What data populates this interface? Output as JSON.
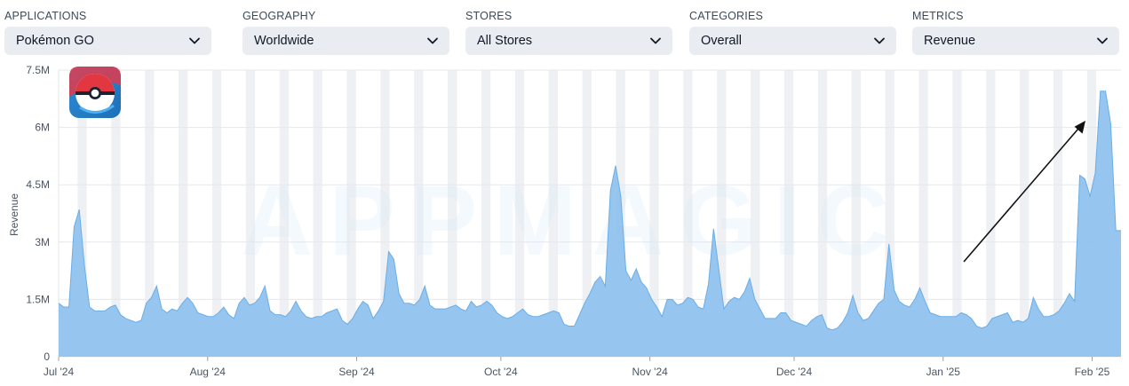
{
  "filters": [
    {
      "label": "APPLICATIONS",
      "value": "Pokémon GO"
    },
    {
      "label": "GEOGRAPHY",
      "value": "Worldwide"
    },
    {
      "label": "STORES",
      "value": "All Stores"
    },
    {
      "label": "CATEGORIES",
      "value": "Overall"
    },
    {
      "label": "METRICS",
      "value": "Revenue"
    }
  ],
  "watermark": "APPMAGIC",
  "colors": {
    "area_fill": "#90c2ee",
    "area_stroke": "#6aaee6",
    "weekend_band": "#eef0f3",
    "grid": "#e5e7eb",
    "dropdown_bg": "#e9ecf0",
    "arrow": "#111111"
  },
  "chart_data": {
    "type": "area",
    "ylabel": "Revenue",
    "ylim": [
      0,
      7500000
    ],
    "yticks": [
      {
        "value": 0,
        "label": "0"
      },
      {
        "value": 1500000,
        "label": "1.5M"
      },
      {
        "value": 3000000,
        "label": "3M"
      },
      {
        "value": 4500000,
        "label": "4.5M"
      },
      {
        "value": 6000000,
        "label": "6M"
      },
      {
        "value": 7500000,
        "label": "7.5M"
      }
    ],
    "xticks": [
      {
        "label": "Jul '24",
        "day": 0
      },
      {
        "label": "Aug '24",
        "day": 31
      },
      {
        "label": "Sep '24",
        "day": 62
      },
      {
        "label": "Oct '24",
        "day": 92
      },
      {
        "label": "Nov '24",
        "day": 123
      },
      {
        "label": "Dec '24",
        "day": 153
      },
      {
        "label": "Jan '25",
        "day": 184
      },
      {
        "label": "Feb '25",
        "day": 215
      }
    ],
    "xmax_day": 221,
    "weekend_band_offset_days": 4,
    "values": [
      1400000,
      1300000,
      1300000,
      3400000,
      3850000,
      2400000,
      1300000,
      1200000,
      1200000,
      1200000,
      1300000,
      1350000,
      1100000,
      1000000,
      950000,
      900000,
      950000,
      1400000,
      1550000,
      1850000,
      1250000,
      1150000,
      1250000,
      1200000,
      1400000,
      1550000,
      1400000,
      1150000,
      1100000,
      1050000,
      1050000,
      1150000,
      1300000,
      1100000,
      1000000,
      1400000,
      1550000,
      1350000,
      1400000,
      1550000,
      1850000,
      1200000,
      1100000,
      1100000,
      1050000,
      1200000,
      1450000,
      1200000,
      1050000,
      1000000,
      1050000,
      1050000,
      1150000,
      1200000,
      1250000,
      950000,
      850000,
      1000000,
      1250000,
      1450000,
      1350000,
      1000000,
      1200000,
      1450000,
      2750000,
      2550000,
      1650000,
      1400000,
      1400000,
      1350000,
      1500000,
      1850000,
      1350000,
      1250000,
      1250000,
      1250000,
      1300000,
      1350000,
      1250000,
      1200000,
      1450000,
      1300000,
      1350000,
      1450000,
      1350000,
      1150000,
      1050000,
      1000000,
      1050000,
      1150000,
      1250000,
      1100000,
      1050000,
      1050000,
      1100000,
      1150000,
      1200000,
      1150000,
      850000,
      800000,
      800000,
      1100000,
      1400000,
      1650000,
      1950000,
      2100000,
      1850000,
      4350000,
      5000000,
      4200000,
      2250000,
      2000000,
      2300000,
      1950000,
      1800000,
      1500000,
      1300000,
      1050000,
      1500000,
      1500000,
      1350000,
      1400000,
      1550000,
      1500000,
      1300000,
      1250000,
      1900000,
      3350000,
      2300000,
      1250000,
      1450000,
      1550000,
      1500000,
      1700000,
      2050000,
      1500000,
      1250000,
      1000000,
      1000000,
      1000000,
      1150000,
      1150000,
      950000,
      900000,
      850000,
      800000,
      950000,
      1050000,
      1100000,
      750000,
      700000,
      750000,
      900000,
      1150000,
      1600000,
      1150000,
      950000,
      1000000,
      1200000,
      1400000,
      1500000,
      2950000,
      1750000,
      1450000,
      1350000,
      1300000,
      1500000,
      1800000,
      1450000,
      1150000,
      1100000,
      1050000,
      1050000,
      1050000,
      1050000,
      1150000,
      1100000,
      1000000,
      800000,
      750000,
      800000,
      1000000,
      1050000,
      1100000,
      1150000,
      900000,
      950000,
      900000,
      1000000,
      1550000,
      1250000,
      1050000,
      1050000,
      1100000,
      1200000,
      1400000,
      1650000,
      1450000,
      4750000,
      4650000,
      4200000,
      4800000,
      6950000,
      6950000,
      6100000,
      3300000,
      3300000
    ]
  }
}
